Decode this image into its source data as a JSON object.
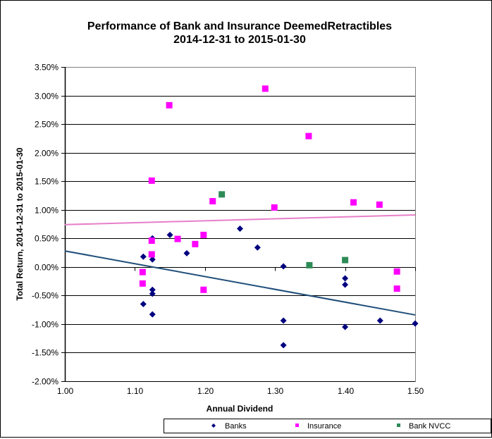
{
  "chart_data": {
    "type": "scatter",
    "title": "Performance of Bank and Insurance DeemedRetractibles",
    "subtitle": "2014-12-31 to 2015-01-30",
    "xlabel": "Annual Dividend",
    "ylabel": "Total Return, 2014-12-31  to 2015-01-30",
    "xlim": [
      1.0,
      1.5
    ],
    "ylim": [
      -2.0,
      3.5
    ],
    "x_ticks": [
      "1.00",
      "1.10",
      "1.20",
      "1.30",
      "1.40",
      "1.50"
    ],
    "x_tick_values": [
      1.0,
      1.1,
      1.2,
      1.3,
      1.4,
      1.5
    ],
    "y_ticks": [
      "3.50%",
      "3.00%",
      "2.50%",
      "2.00%",
      "1.50%",
      "1.00%",
      "0.50%",
      "0.00%",
      "-0.50%",
      "-1.00%",
      "-1.50%",
      "-2.00%"
    ],
    "y_tick_values": [
      3.5,
      3.0,
      2.5,
      2.0,
      1.5,
      1.0,
      0.5,
      0.0,
      -0.5,
      -1.0,
      -1.5,
      -2.0
    ],
    "grid": "horizontal",
    "legend_position": "bottom",
    "series": [
      {
        "name": "Banks",
        "marker": "diamond",
        "color": "#000080",
        "points": [
          [
            1.112,
            0.18
          ],
          [
            1.112,
            -0.65
          ],
          [
            1.125,
            0.5
          ],
          [
            1.125,
            0.13
          ],
          [
            1.125,
            -0.4
          ],
          [
            1.125,
            -0.47
          ],
          [
            1.125,
            -0.83
          ],
          [
            1.15,
            0.56
          ],
          [
            1.174,
            0.24
          ],
          [
            1.25,
            0.67
          ],
          [
            1.275,
            0.34
          ],
          [
            1.312,
            0.01
          ],
          [
            1.312,
            -0.94
          ],
          [
            1.312,
            -1.37
          ],
          [
            1.4,
            -0.2
          ],
          [
            1.4,
            -0.31
          ],
          [
            1.4,
            -1.05
          ],
          [
            1.45,
            -0.94
          ],
          [
            1.5,
            -0.99
          ]
        ],
        "trendline": {
          "color": "#1F4E79",
          "y_at_xmin": 0.28,
          "y_at_xmax": -0.84
        }
      },
      {
        "name": "Insurance",
        "marker": "square",
        "color": "#FF00FF",
        "points": [
          [
            1.111,
            -0.09
          ],
          [
            1.111,
            -0.29
          ],
          [
            1.124,
            1.51
          ],
          [
            1.124,
            0.46
          ],
          [
            1.124,
            0.22
          ],
          [
            1.149,
            2.83
          ],
          [
            1.161,
            0.49
          ],
          [
            1.186,
            0.4
          ],
          [
            1.198,
            0.56
          ],
          [
            1.198,
            -0.4
          ],
          [
            1.211,
            1.15
          ],
          [
            1.286,
            3.12
          ],
          [
            1.299,
            1.04
          ],
          [
            1.348,
            2.29
          ],
          [
            1.412,
            1.13
          ],
          [
            1.449,
            1.09
          ],
          [
            1.474,
            -0.08
          ],
          [
            1.474,
            -0.38
          ]
        ],
        "trendline": {
          "color": "#E77FC9",
          "y_at_xmin": 0.74,
          "y_at_xmax": 0.91
        }
      },
      {
        "name": "Bank NVCC",
        "marker": "square",
        "color": "#2E8B57",
        "points": [
          [
            1.224,
            1.27
          ],
          [
            1.349,
            0.03
          ],
          [
            1.4,
            0.12
          ]
        ]
      }
    ]
  },
  "legend": {
    "items": [
      "Banks",
      "Insurance",
      "Bank NVCC"
    ]
  }
}
